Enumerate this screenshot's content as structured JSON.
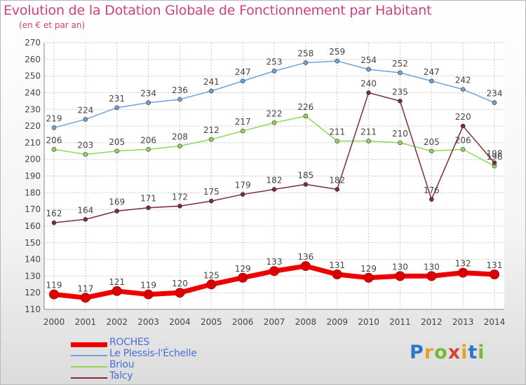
{
  "header": {
    "title": "Evolution de la Dotation Globale de Fonctionnement par Habitant",
    "subtitle": "(en € et par an)"
  },
  "logo": {
    "text": "Proxiti"
  },
  "chart_data": {
    "type": "line",
    "title": "Evolution de la Dotation Globale de Fonctionnement par Habitant",
    "subtitle": "(en € et par an)",
    "x": [
      "2000",
      "2001",
      "2002",
      "2003",
      "2004",
      "2005",
      "2006",
      "2007",
      "2008",
      "2009",
      "2010",
      "2011",
      "2012",
      "2013",
      "2014"
    ],
    "ylim": [
      110,
      270
    ],
    "yticks": [
      110,
      120,
      130,
      140,
      150,
      160,
      170,
      180,
      190,
      200,
      210,
      220,
      230,
      240,
      250,
      260,
      270
    ],
    "grid": true,
    "legend_position": "bottom-left",
    "series": [
      {
        "name": "ROCHES",
        "color": "#ee0000",
        "values": [
          119,
          117,
          121,
          119,
          120,
          125,
          129,
          133,
          136,
          131,
          129,
          130,
          130,
          132,
          131
        ]
      },
      {
        "name": "Le Plessis-l'Échelle",
        "color": "#6fa2d8",
        "values": [
          219,
          224,
          231,
          234,
          236,
          241,
          247,
          253,
          258,
          259,
          254,
          252,
          247,
          242,
          234
        ]
      },
      {
        "name": "Briou",
        "color": "#8fd65a",
        "values": [
          206,
          203,
          205,
          206,
          208,
          212,
          217,
          222,
          226,
          211,
          211,
          210,
          205,
          206,
          196
        ]
      },
      {
        "name": "Talcy",
        "color": "#7a2f35",
        "values": [
          162,
          164,
          169,
          171,
          172,
          175,
          179,
          182,
          185,
          182,
          240,
          235,
          176,
          220,
          198
        ]
      }
    ]
  }
}
